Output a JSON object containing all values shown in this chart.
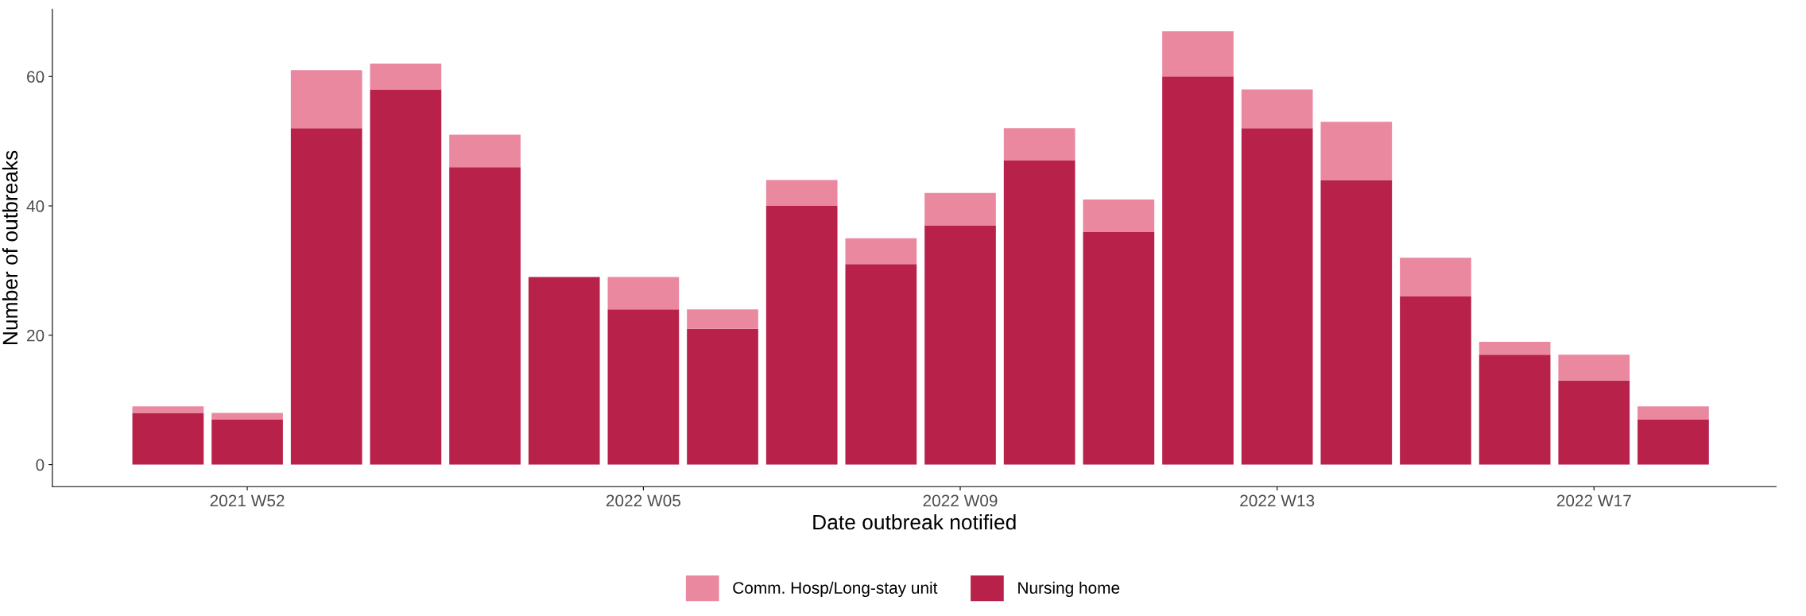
{
  "chart_data": {
    "type": "bar",
    "stacked": true,
    "xlabel": "Date outbreak notified",
    "ylabel": "Number of outbreaks",
    "categories": [
      null,
      "2021 W52",
      null,
      null,
      null,
      null,
      "2022 W05",
      null,
      null,
      null,
      "2022 W09",
      null,
      null,
      null,
      "2022 W13",
      null,
      null,
      null,
      "2022 W17",
      null
    ],
    "series": [
      {
        "name": "Nursing home",
        "color": "#b8214a",
        "values": [
          8,
          7,
          52,
          58,
          46,
          29,
          24,
          21,
          40,
          31,
          37,
          47,
          36,
          60,
          52,
          44,
          26,
          17,
          13,
          7
        ]
      },
      {
        "name": "Comm. Hosp/Long-stay unit",
        "color": "#ea88a0",
        "values": [
          1,
          1,
          9,
          4,
          5,
          0,
          5,
          3,
          4,
          4,
          5,
          5,
          5,
          7,
          6,
          9,
          6,
          2,
          4,
          2
        ]
      }
    ],
    "ylim": [
      -3.4,
      70.4
    ],
    "yticks": [
      0,
      20,
      40,
      60
    ],
    "grid": false,
    "legend": "bottom"
  }
}
